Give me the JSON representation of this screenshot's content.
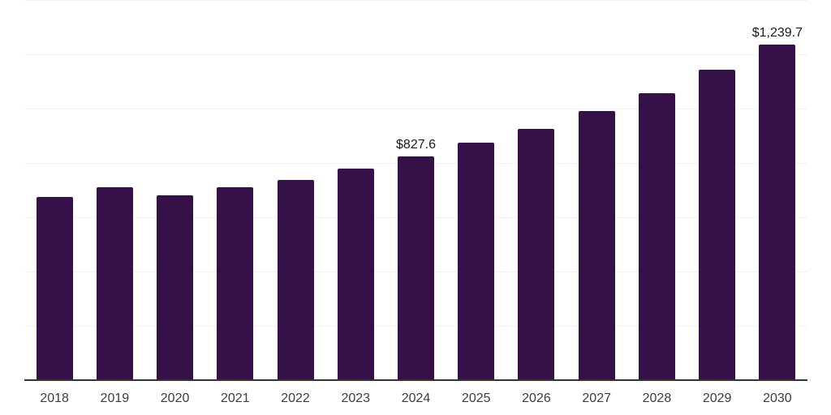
{
  "chart_data": {
    "type": "bar",
    "title": "",
    "xlabel": "",
    "ylabel": "",
    "categories": [
      "2018",
      "2019",
      "2020",
      "2021",
      "2022",
      "2023",
      "2024",
      "2025",
      "2026",
      "2027",
      "2028",
      "2029",
      "2030"
    ],
    "values": [
      678,
      713,
      684,
      712,
      741,
      781,
      827.6,
      877,
      929,
      993,
      1061,
      1146,
      1239.7
    ],
    "value_labels": {
      "2024": "$827.6",
      "2030": "$1,239.7"
    },
    "ylim": [
      0,
      1400
    ],
    "grid": {
      "horizontal": true,
      "interval": 200,
      "vertical": false
    },
    "legend_position": "none",
    "colors": {
      "bar": "#361149",
      "axis": "#333333",
      "grid": "#f2f2f2",
      "value_label": "#1a1a1a",
      "tick_label": "#3d3d3d",
      "background": "#ffffff"
    }
  }
}
